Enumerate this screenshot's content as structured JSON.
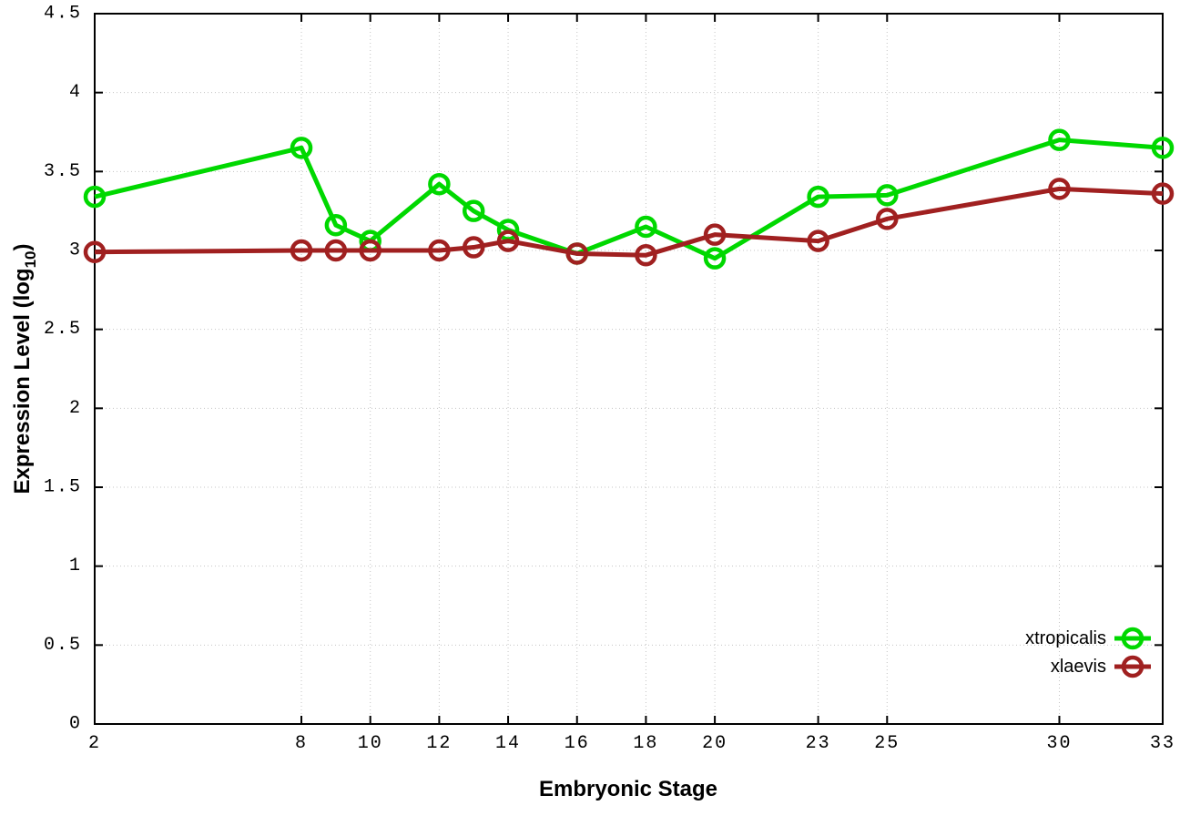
{
  "colors": {
    "background": "#ffffff",
    "axis": "#000000",
    "grid": "#c4c4c4",
    "xtropicalis": "#00d800",
    "xlaevis": "#a02020"
  },
  "chart_data": {
    "type": "line",
    "title": "",
    "xlabel": "Embryonic Stage",
    "ylabel": "Expression Level (log10)",
    "ylabel_parts": {
      "prefix": "Expression Level (log",
      "sub": "10",
      "suffix": ")"
    },
    "x": [
      2,
      8,
      9,
      10,
      12,
      13,
      14,
      16,
      18,
      20,
      23,
      25,
      30,
      33
    ],
    "series": [
      {
        "name": "xtropicalis",
        "color": "#00d800",
        "values": [
          3.34,
          3.65,
          3.16,
          3.06,
          3.42,
          3.25,
          3.13,
          2.98,
          3.15,
          2.95,
          3.34,
          3.35,
          3.7,
          3.65
        ]
      },
      {
        "name": "xlaevis",
        "color": "#a02020",
        "values": [
          2.99,
          3.0,
          3.0,
          3.0,
          3.0,
          3.02,
          3.06,
          2.98,
          2.97,
          3.1,
          3.06,
          3.2,
          3.39,
          3.36
        ]
      }
    ],
    "xticks": [
      2,
      8,
      10,
      12,
      14,
      16,
      18,
      20,
      23,
      25,
      30,
      33
    ],
    "yticks": [
      0,
      0.5,
      1,
      1.5,
      2,
      2.5,
      3,
      3.5,
      4,
      4.5
    ],
    "xlim": [
      2,
      33
    ],
    "ylim": [
      0,
      4.5
    ],
    "grid": true,
    "ticks_mirrored": true,
    "legend_position": "bottom-right",
    "legend": [
      "xtropicalis",
      "xlaevis"
    ],
    "marker": "open-circle"
  }
}
